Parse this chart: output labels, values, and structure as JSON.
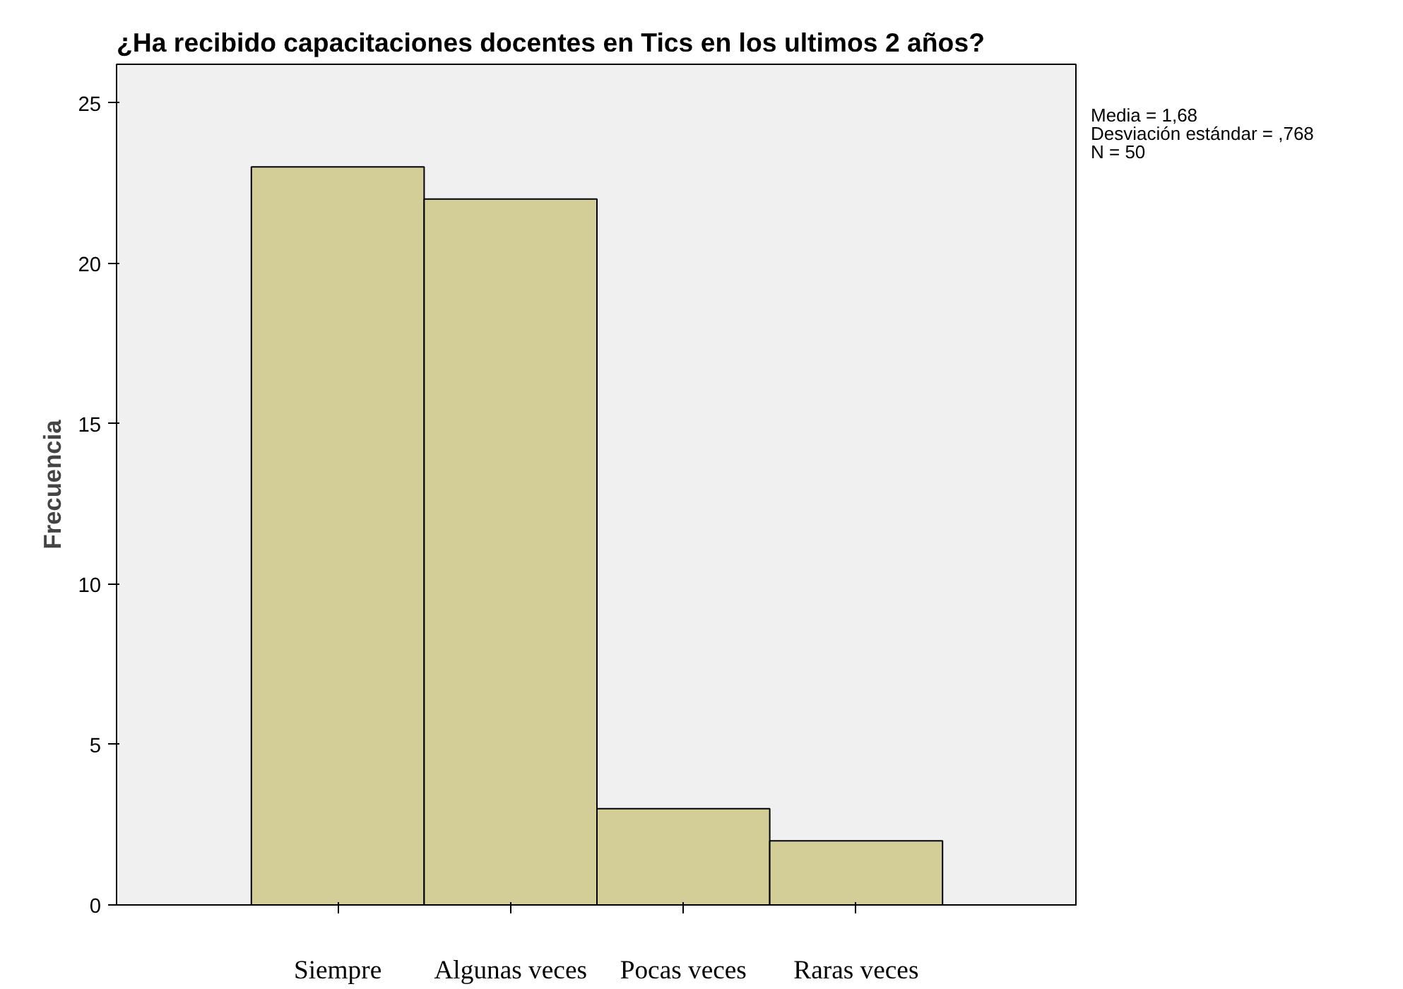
{
  "chart_data": {
    "type": "bar",
    "title": "¿Ha recibido capacitaciones docentes en Tics en los ultimos 2 años?",
    "ylabel": "Frecuencia",
    "categories": [
      "Siempre",
      "Algunas veces",
      "Pocas veces",
      "Raras veces"
    ],
    "values": [
      23,
      22,
      3,
      2
    ],
    "color": "#d3ce97",
    "ylim": [
      0,
      26.2
    ],
    "yticks": [
      0,
      5,
      10,
      15,
      20,
      25
    ],
    "grid": false,
    "annotations": [
      "Media = 1,68",
      "Desviación estándar = ,768",
      "N = 50"
    ]
  }
}
